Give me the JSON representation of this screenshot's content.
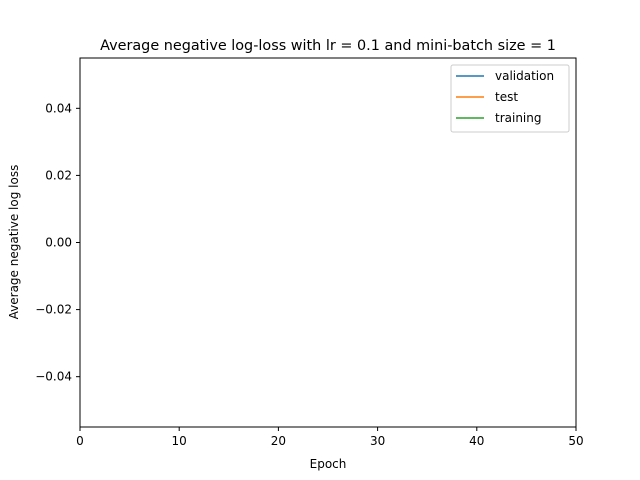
{
  "chart_data": {
    "type": "line",
    "title": "Average negative log-loss with lr = 0.1 and mini-batch size = 1",
    "xlabel": "Epoch",
    "ylabel": "Average negative log loss",
    "xlim": [
      0,
      50
    ],
    "ylim": [
      -0.055,
      0.055
    ],
    "xticks": [
      0,
      10,
      20,
      30,
      40,
      50
    ],
    "xtick_labels": [
      "0",
      "10",
      "20",
      "30",
      "40",
      "50"
    ],
    "yticks": [
      -0.04,
      -0.02,
      0.0,
      0.02,
      0.04
    ],
    "ytick_labels": [
      "−0.04",
      "−0.02",
      "0.00",
      "0.02",
      "0.04"
    ],
    "grid": false,
    "legend_position": "top-right",
    "series": [
      {
        "name": "validation",
        "color": "#1f77b4",
        "x": [],
        "y": []
      },
      {
        "name": "test",
        "color": "#ff7f0e",
        "x": [],
        "y": []
      },
      {
        "name": "training",
        "color": "#2ca02c",
        "x": [],
        "y": []
      }
    ]
  }
}
